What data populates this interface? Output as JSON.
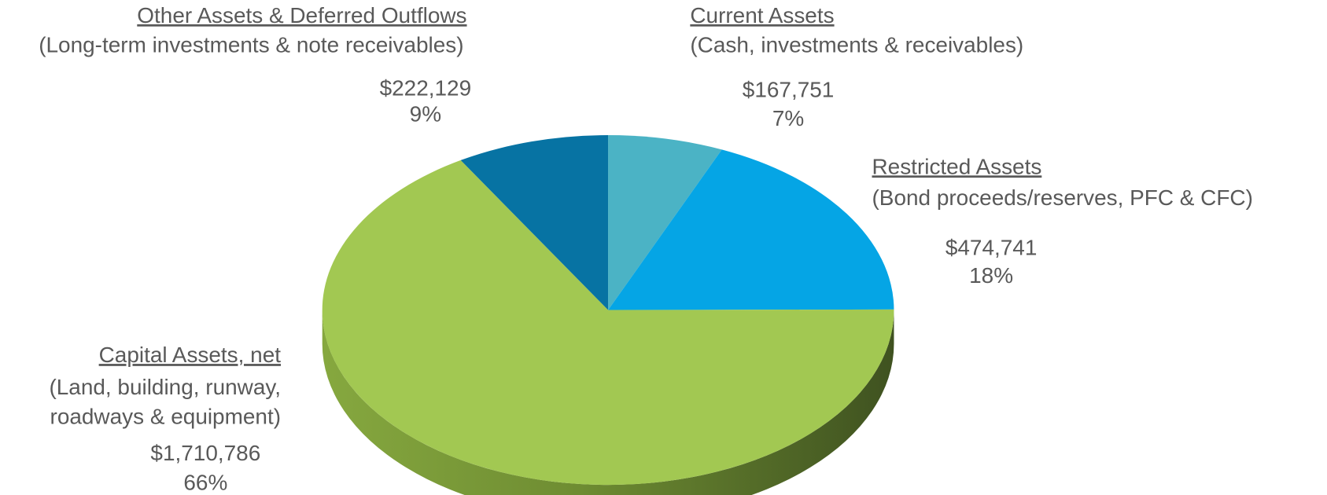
{
  "chart_data": {
    "type": "pie3d",
    "categories": [
      "Current Assets",
      "Restricted Assets",
      "Capital Assets, net",
      "Other Assets &  Deferred Outflows"
    ],
    "descriptions": [
      [
        "(Cash, investments & receivables)"
      ],
      [
        "(Bond proceeds/reserves, PFC & CFC)"
      ],
      [
        "(Land, building, runway,",
        "roadways & equipment)"
      ],
      [
        "(Long-term investments & note receivables)"
      ]
    ],
    "values": [
      167751,
      474741,
      1710786,
      222129
    ],
    "value_labels": [
      "$167,751",
      "$474,741",
      "$1,710,786",
      "$222,129"
    ],
    "percent_labels": [
      "7%",
      "18%",
      "66%",
      "9%"
    ],
    "colors": [
      "#4bb3c5",
      "#05a5e5",
      "#a2c852",
      "#0773a3"
    ]
  }
}
